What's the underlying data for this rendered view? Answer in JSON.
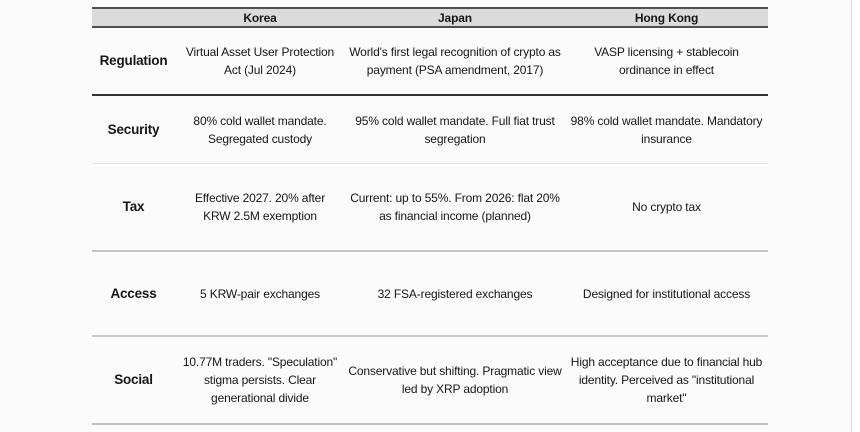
{
  "colors": {
    "header_bg": "#dbdbdb",
    "header_border": "#4f4f4f",
    "divider_dark": "#323232",
    "divider_light": "#e4e4e4",
    "divider_mid": "#c5c5c5",
    "page_edge_line": "#dcdcdc",
    "text": "#161616"
  },
  "table": {
    "columns": [
      "Korea",
      "Japan",
      "Hong Kong"
    ],
    "rows": [
      {
        "label": "Regulation",
        "cells": [
          "Virtual Asset User Protection\nAct (Jul 2024)",
          "World's first legal recognition of crypto as\npayment (PSA amendment, 2017)",
          "VASP licensing + stablecoin\nordinance in effect"
        ]
      },
      {
        "label": "Security",
        "cells": [
          "80% cold wallet mandate.\nSegregated custody",
          "95% cold wallet mandate. Full fiat trust\nsegregation",
          "98% cold wallet mandate. Mandatory\ninsurance"
        ]
      },
      {
        "label": "Tax",
        "cells": [
          "Effective 2027. 20% after\nKRW 2.5M exemption",
          "Current: up to 55%. From 2026: flat 20%\nas financial income (planned)",
          "No crypto tax"
        ]
      },
      {
        "label": "Access",
        "cells": [
          "5 KRW-pair exchanges",
          "32 FSA-registered exchanges",
          "Designed for institutional access"
        ]
      },
      {
        "label": "Social",
        "cells": [
          "10.77M traders. \"Speculation\"\nstigma persists. Clear\ngenerational divide",
          "Conservative but shifting. Pragmatic view\nled by XRP adoption",
          "High acceptance due to financial hub\nidentity. Perceived as \"institutional\nmarket\""
        ]
      }
    ]
  }
}
